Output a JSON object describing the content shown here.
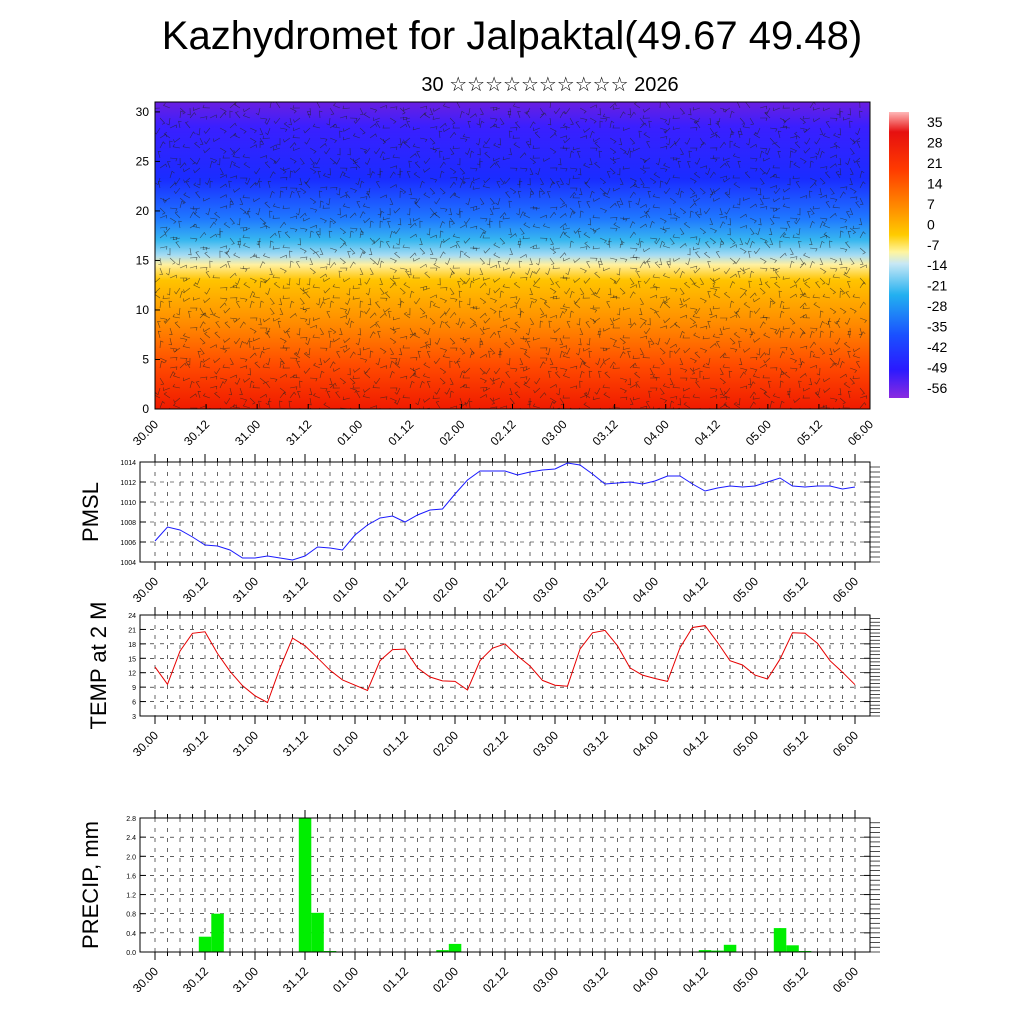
{
  "title": "Kazhydromet for Jalpaktal(49.67 49.48)",
  "subtitle": "30 ☆☆☆☆☆☆☆☆☆☆ 2026",
  "colors": {
    "pmsl": "#1a1aff",
    "temp": "#e60000",
    "precip": "#00ee00"
  },
  "chart_data": [
    {
      "type": "heatmap",
      "name": "cross-section",
      "y_ticks": [
        "0",
        "5",
        "10",
        "15",
        "20",
        "25",
        "30"
      ],
      "ylim": [
        0,
        31
      ],
      "x_ticks": [
        "30.00",
        "30.12",
        "31.00",
        "31.12",
        "01.00",
        "01.12",
        "02.00",
        "02.12",
        "03.00",
        "03.12",
        "04.00",
        "04.12",
        "05.00",
        "05.12",
        "06.00"
      ],
      "colorbar_labels": [
        "35",
        "28",
        "21",
        "14",
        "7",
        "0",
        "-7",
        "-14",
        "-21",
        "-28",
        "-35",
        "-42",
        "-49",
        "-56"
      ],
      "colorbar_range": [
        -63,
        42
      ]
    },
    {
      "type": "line",
      "ylabel": "PMSL",
      "ylim": [
        1004,
        1014
      ],
      "y_ticks": [
        "1004",
        "1006",
        "1008",
        "1010",
        "1012",
        "1014"
      ],
      "x_ticks": [
        "30.00",
        "30.12",
        "31.00",
        "31.12",
        "01.00",
        "01.12",
        "02.00",
        "02.12",
        "03.00",
        "03.12",
        "04.00",
        "04.12",
        "05.00",
        "05.12",
        "06.00"
      ],
      "series": [
        {
          "values": [
            1006.1,
            1007.5,
            1007.2,
            1006.5,
            1005.7,
            1005.6,
            1005.2,
            1004.4,
            1004.4,
            1004.6,
            1004.4,
            1004.2,
            1004.6,
            1005.5,
            1005.4,
            1005.2,
            1006.7,
            1007.7,
            1008.4,
            1008.6,
            1008.0,
            1008.7,
            1009.2,
            1009.3,
            1010.8,
            1012.2,
            1013.1,
            1013.1,
            1013.1,
            1012.7,
            1013.0,
            1013.2,
            1013.3,
            1013.9,
            1013.7,
            1012.8,
            1011.8,
            1011.9,
            1012.0,
            1011.8,
            1012.1,
            1012.6,
            1012.6,
            1011.8,
            1011.1,
            1011.4,
            1011.6,
            1011.5,
            1011.6,
            1012.0,
            1012.4,
            1011.6,
            1011.5,
            1011.6,
            1011.6,
            1011.3,
            1011.5
          ]
        }
      ]
    },
    {
      "type": "line",
      "ylabel": "TEMP at 2 M",
      "ylim": [
        3,
        24
      ],
      "y_ticks": [
        "3",
        "6",
        "9",
        "12",
        "15",
        "18",
        "21",
        "24"
      ],
      "x_ticks": [
        "30.00",
        "30.12",
        "31.00",
        "31.12",
        "01.00",
        "01.12",
        "02.00",
        "02.12",
        "03.00",
        "03.12",
        "04.00",
        "04.12",
        "05.00",
        "05.12",
        "06.00"
      ],
      "series": [
        {
          "values": [
            13.2,
            9.6,
            16.5,
            20.2,
            20.5,
            16.0,
            12.3,
            9.3,
            7.2,
            5.8,
            13.0,
            19.2,
            17.6,
            15.1,
            12.5,
            10.5,
            9.4,
            8.3,
            14.5,
            16.8,
            16.9,
            13.0,
            11.1,
            10.3,
            10.2,
            8.4,
            14.5,
            17.1,
            18.0,
            15.5,
            13.4,
            10.4,
            9.4,
            9.2,
            16.9,
            20.3,
            20.8,
            17.6,
            13.0,
            11.5,
            10.8,
            10.2,
            17.2,
            21.4,
            21.8,
            18.3,
            14.5,
            13.6,
            11.5,
            10.7,
            14.8,
            20.3,
            20.2,
            18.1,
            14.5,
            12.1,
            9.5
          ]
        }
      ]
    },
    {
      "type": "bar",
      "ylabel": "PRECIP, mm",
      "ylim": [
        0,
        2.8
      ],
      "y_ticks": [
        "0.0",
        "0.4",
        "0.8",
        "1.2",
        "1.6",
        "2.0",
        "2.4",
        "2.8"
      ],
      "x_ticks": [
        "30.00",
        "30.12",
        "31.00",
        "31.12",
        "01.00",
        "01.12",
        "02.00",
        "02.12",
        "03.00",
        "03.12",
        "04.00",
        "04.12",
        "05.00",
        "05.12",
        "06.00"
      ],
      "series": [
        {
          "values": [
            0,
            0,
            0,
            0,
            0.32,
            0.8,
            0,
            0,
            0,
            0,
            0,
            0,
            2.8,
            0.82,
            0.02,
            0,
            0,
            0,
            0,
            0,
            0,
            0,
            0,
            0.04,
            0.17,
            0,
            0,
            0,
            0,
            0,
            0,
            0,
            0,
            0,
            0,
            0,
            0,
            0,
            0,
            0,
            0,
            0,
            0,
            0.01,
            0.04,
            0.03,
            0.15,
            0,
            0,
            0,
            0.5,
            0.14,
            0.02,
            0,
            0,
            0,
            0
          ]
        }
      ]
    }
  ]
}
